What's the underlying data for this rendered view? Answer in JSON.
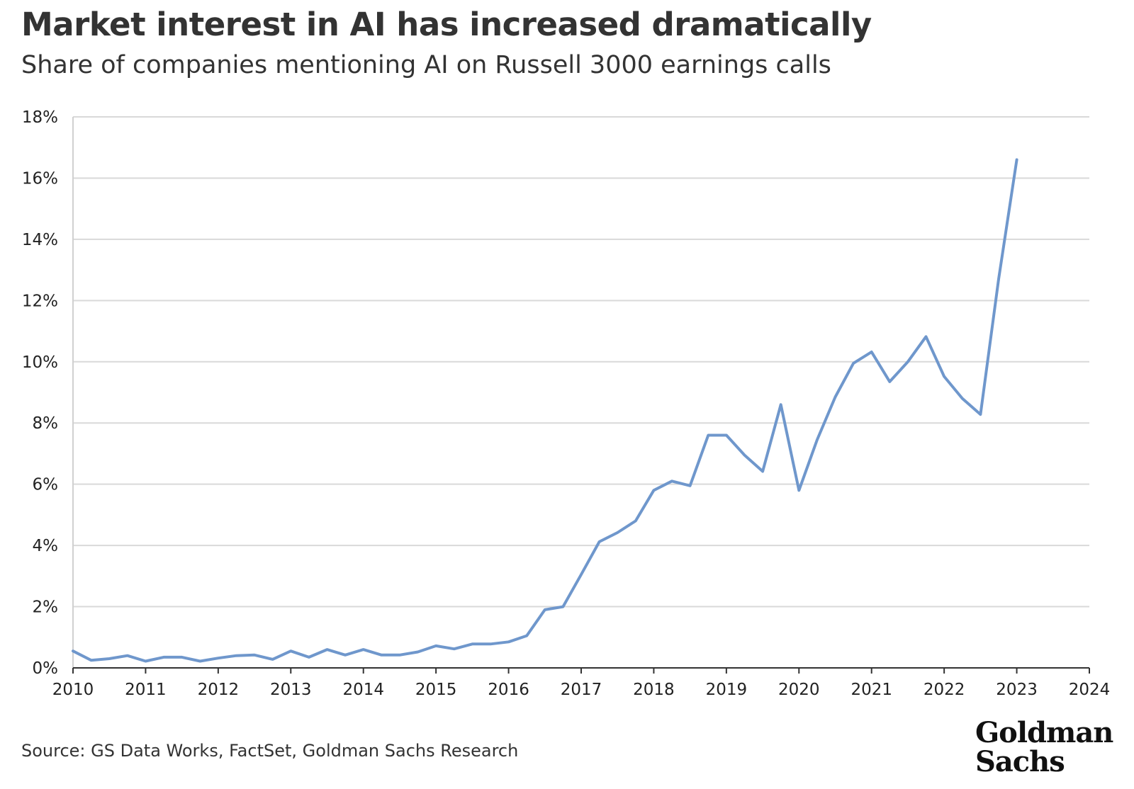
{
  "chart_data": {
    "type": "line",
    "title": "Market interest in AI has increased dramatically",
    "subtitle": "Share of companies mentioning AI on Russell 3000 earnings calls",
    "xlabel": "",
    "ylabel": "",
    "xlim": [
      2010,
      2024
    ],
    "ylim": [
      0,
      18
    ],
    "x_ticks": [
      "2010",
      "2011",
      "2012",
      "2013",
      "2014",
      "2015",
      "2016",
      "2017",
      "2018",
      "2019",
      "2020",
      "2021",
      "2022",
      "2023",
      "2024"
    ],
    "y_ticks": [
      "0%",
      "2%",
      "4%",
      "6%",
      "8%",
      "10%",
      "12%",
      "14%",
      "16%",
      "18%"
    ],
    "grid": true,
    "series": [
      {
        "name": "Share of companies mentioning AI",
        "color": "#6f97cc",
        "x": [
          2010.0,
          2010.25,
          2010.5,
          2010.75,
          2011.0,
          2011.25,
          2011.5,
          2011.75,
          2012.0,
          2012.25,
          2012.5,
          2012.75,
          2013.0,
          2013.25,
          2013.5,
          2013.75,
          2014.0,
          2014.25,
          2014.5,
          2014.75,
          2015.0,
          2015.25,
          2015.5,
          2015.75,
          2016.0,
          2016.25,
          2016.5,
          2016.75,
          2017.0,
          2017.25,
          2017.5,
          2017.75,
          2018.0,
          2018.25,
          2018.5,
          2018.75,
          2019.0,
          2019.25,
          2019.5,
          2019.75,
          2020.0,
          2020.25,
          2020.5,
          2020.75,
          2021.0,
          2021.25,
          2021.5,
          2021.75,
          2022.0,
          2022.25,
          2022.5,
          2022.75,
          2023.0
        ],
        "values": [
          0.55,
          0.25,
          0.3,
          0.4,
          0.22,
          0.35,
          0.35,
          0.22,
          0.32,
          0.4,
          0.42,
          0.28,
          0.55,
          0.35,
          0.6,
          0.42,
          0.6,
          0.42,
          0.42,
          0.52,
          0.72,
          0.62,
          0.78,
          0.78,
          0.85,
          1.05,
          1.9,
          2.0,
          3.05,
          4.12,
          4.42,
          4.8,
          5.8,
          6.1,
          5.95,
          7.6,
          7.6,
          6.95,
          6.42,
          8.6,
          5.8,
          7.45,
          8.85,
          9.95,
          10.32,
          9.35,
          10.0,
          10.82,
          9.52,
          8.8,
          8.28,
          12.7,
          16.6
        ]
      }
    ]
  },
  "source": "Source: GS Data Works, FactSet, Goldman Sachs Research",
  "logo": {
    "line1": "Goldman",
    "line2": "Sachs"
  }
}
